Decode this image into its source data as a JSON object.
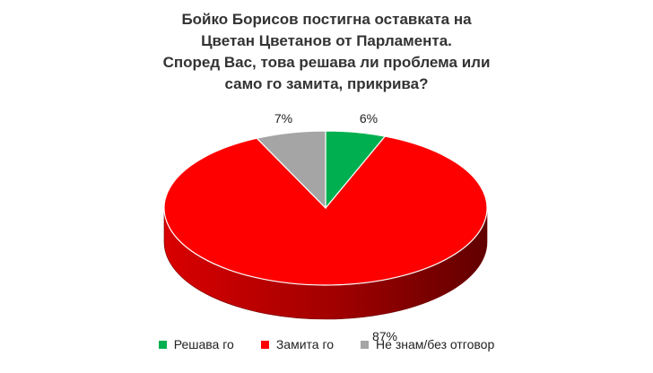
{
  "chart_data": {
    "type": "pie",
    "title_lines": [
      "Бойко Борисов постигна оставката на",
      "Цветан Цветанов от Парламента.",
      "Според Вас, това решава ли проблема или",
      "само го замита, прикрива?"
    ],
    "slices": [
      {
        "label": "Решава го",
        "value": 6,
        "display": "6%",
        "color": "#00b050"
      },
      {
        "label": "Замита го",
        "value": 87,
        "display": "87%",
        "color": "#ff0000"
      },
      {
        "label": "Не знам/без отговор",
        "value": 7,
        "display": "7%",
        "color": "#a5a5a5"
      }
    ],
    "legend_position": "bottom",
    "style": "3d"
  }
}
